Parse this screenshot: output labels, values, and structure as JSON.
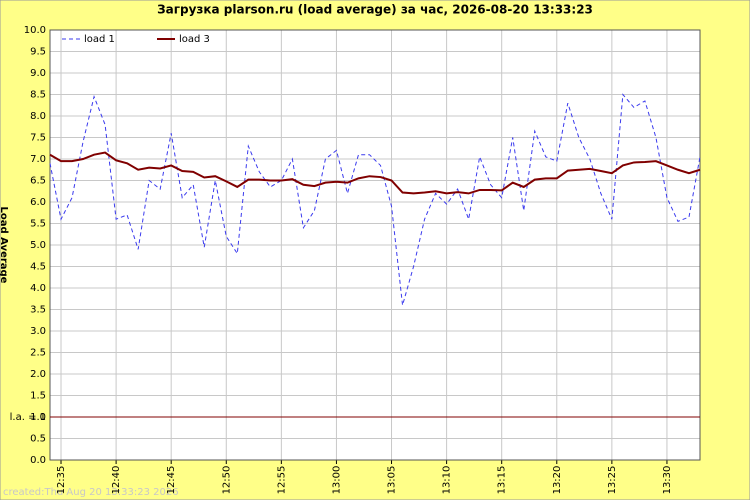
{
  "chart_data": {
    "type": "line",
    "title": "Загрузка plarson.ru (load average) за час, 2026-08-20 13:33:23",
    "y_label": "Load Average",
    "footer": "created:Thu Aug 20 13:33:23 2026",
    "categories": [
      null,
      "12:35",
      null,
      null,
      null,
      null,
      "12:40",
      null,
      null,
      null,
      null,
      "12:45",
      null,
      null,
      null,
      null,
      "12:50",
      null,
      null,
      null,
      null,
      "12:55",
      null,
      null,
      null,
      null,
      "13:00",
      null,
      null,
      null,
      null,
      "13:05",
      null,
      null,
      null,
      null,
      "13:10",
      null,
      null,
      null,
      null,
      "13:15",
      null,
      null,
      null,
      null,
      "13:20",
      null,
      null,
      null,
      null,
      "13:25",
      null,
      null,
      null,
      null,
      "13:30",
      null,
      null,
      null
    ],
    "series": [
      {
        "name": "load 1",
        "color": "#3a3aee",
        "style": "dashed",
        "values": [
          6.9,
          5.6,
          6.1,
          7.4,
          8.45,
          7.8,
          5.6,
          5.7,
          4.9,
          6.5,
          6.3,
          7.6,
          6.1,
          6.4,
          4.95,
          6.5,
          5.2,
          4.8,
          7.3,
          6.7,
          6.35,
          6.5,
          7.0,
          5.4,
          5.8,
          7.0,
          7.2,
          6.2,
          7.1,
          7.1,
          6.85,
          5.9,
          3.6,
          4.5,
          5.6,
          6.2,
          5.95,
          6.3,
          5.6,
          7.05,
          6.4,
          6.1,
          7.5,
          5.8,
          7.65,
          7.05,
          6.95,
          8.3,
          7.5,
          7.0,
          6.2,
          5.6,
          8.5,
          8.2,
          8.35,
          7.5,
          6.1,
          5.55,
          5.65,
          7.05
        ]
      },
      {
        "name": "load 3",
        "color": "#800000",
        "style": "solid",
        "values": [
          7.1,
          6.95,
          6.95,
          7.0,
          7.1,
          7.15,
          6.97,
          6.9,
          6.75,
          6.8,
          6.78,
          6.85,
          6.72,
          6.7,
          6.57,
          6.6,
          6.48,
          6.35,
          6.52,
          6.52,
          6.5,
          6.5,
          6.53,
          6.4,
          6.37,
          6.45,
          6.47,
          6.45,
          6.55,
          6.6,
          6.58,
          6.5,
          6.22,
          6.2,
          6.22,
          6.25,
          6.2,
          6.23,
          6.2,
          6.28,
          6.28,
          6.27,
          6.45,
          6.35,
          6.52,
          6.55,
          6.55,
          6.73,
          6.75,
          6.77,
          6.72,
          6.67,
          6.85,
          6.92,
          6.93,
          6.95,
          6.85,
          6.75,
          6.67,
          6.75
        ]
      }
    ],
    "reference_line": {
      "value": 1,
      "label": "l.a. = 1",
      "color": "#800000"
    },
    "ylim": [
      0,
      10
    ],
    "yticks": [
      {
        "value": 0,
        "label": "0.0"
      },
      {
        "value": 0.5,
        "label": "0.5"
      },
      {
        "value": 1,
        "label": "1.0"
      },
      {
        "value": 1.5,
        "label": "1.5"
      },
      {
        "value": 2,
        "label": "2.0"
      },
      {
        "value": 2.5,
        "label": "2.5"
      },
      {
        "value": 3,
        "label": "3.0"
      },
      {
        "value": 3.5,
        "label": "3.5"
      },
      {
        "value": 4,
        "label": "4.0"
      },
      {
        "value": 4.5,
        "label": "4.5"
      },
      {
        "value": 5,
        "label": "5.0"
      },
      {
        "value": 5.5,
        "label": "5.5"
      },
      {
        "value": 6,
        "label": "6.0"
      },
      {
        "value": 6.5,
        "label": "6.5"
      },
      {
        "value": 7,
        "label": "7.0"
      },
      {
        "value": 7.5,
        "label": "7.5"
      },
      {
        "value": 8,
        "label": "8.0"
      },
      {
        "value": 8.5,
        "label": "8.5"
      },
      {
        "value": 9,
        "label": "9.0"
      },
      {
        "value": 9.5,
        "label": "9.5"
      },
      {
        "value": 10,
        "label": "10.0"
      }
    ],
    "grid": true,
    "legend": "top-left"
  }
}
